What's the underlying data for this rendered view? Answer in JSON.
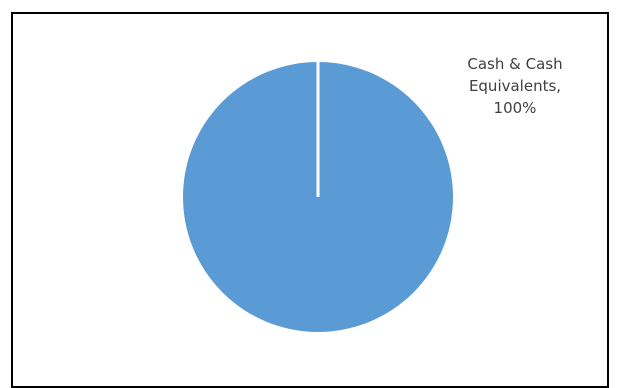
{
  "chart_data": {
    "type": "pie",
    "title": "",
    "slices": [
      {
        "label": "Cash & Cash Equivalents",
        "value": 100,
        "color": "#5b9bd5"
      }
    ],
    "data_label": {
      "line1": "Cash & Cash",
      "line2": "Equivalents,",
      "line3": "100%"
    },
    "legend": "none"
  }
}
